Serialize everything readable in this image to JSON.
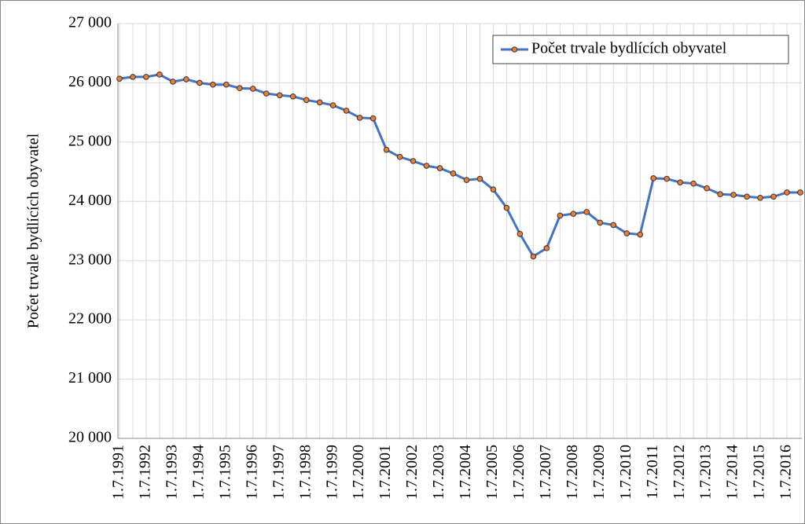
{
  "chart_data": {
    "type": "line",
    "y_label": "Počet trvale bydlících obyvatel",
    "categories": [
      "1.7.1991",
      null,
      "1.7.1992",
      null,
      "1.7.1993",
      null,
      "1.7.1994",
      null,
      "1.7.1995",
      null,
      "1.7.1996",
      null,
      "1.7.1997",
      null,
      "1.7.1998",
      null,
      "1.7.1999",
      null,
      "1.7.2000",
      null,
      "1.7.2001",
      null,
      "1.7.2002",
      null,
      "1.7.2003",
      null,
      "1.7.2004",
      null,
      "1.7.2005",
      null,
      "1.7.2006",
      null,
      "1.7.2007",
      null,
      "1.7.2008",
      null,
      "1.7.2009",
      null,
      "1.7.2010",
      null,
      "1.7.2011",
      null,
      "1.7.2012",
      null,
      "1.7.2013",
      null,
      "1.7.2014",
      null,
      "1.7.2015",
      null,
      "1.7.2016",
      null
    ],
    "series": [
      {
        "name": "Počet trvale bydlících obyvatel",
        "color": "#4472c4",
        "marker_color": "#ed7d31",
        "values": [
          26070,
          26100,
          26100,
          26140,
          26020,
          26060,
          26000,
          25970,
          25970,
          25910,
          25900,
          25820,
          25790,
          25770,
          25710,
          25670,
          25620,
          25530,
          25410,
          25400,
          24870,
          24750,
          24680,
          24600,
          24560,
          24470,
          24360,
          24380,
          24200,
          23890,
          23450,
          23070,
          23210,
          23760,
          23790,
          23820,
          23640,
          23600,
          23460,
          23440,
          24390,
          24380,
          24320,
          24300,
          24220,
          24120,
          24110,
          24080,
          24060,
          24080,
          24150,
          24150
        ]
      }
    ],
    "ylim": [
      20000,
      27000
    ],
    "yticks": [
      {
        "value": 20000,
        "label": "20 000"
      },
      {
        "value": 21000,
        "label": "21 000"
      },
      {
        "value": 22000,
        "label": "22 000"
      },
      {
        "value": 23000,
        "label": "23 000"
      },
      {
        "value": 24000,
        "label": "24 000"
      },
      {
        "value": 25000,
        "label": "25 000"
      },
      {
        "value": 26000,
        "label": "26 000"
      },
      {
        "value": 27000,
        "label": "27 000"
      }
    ],
    "grid": true,
    "legend": "upper right"
  }
}
